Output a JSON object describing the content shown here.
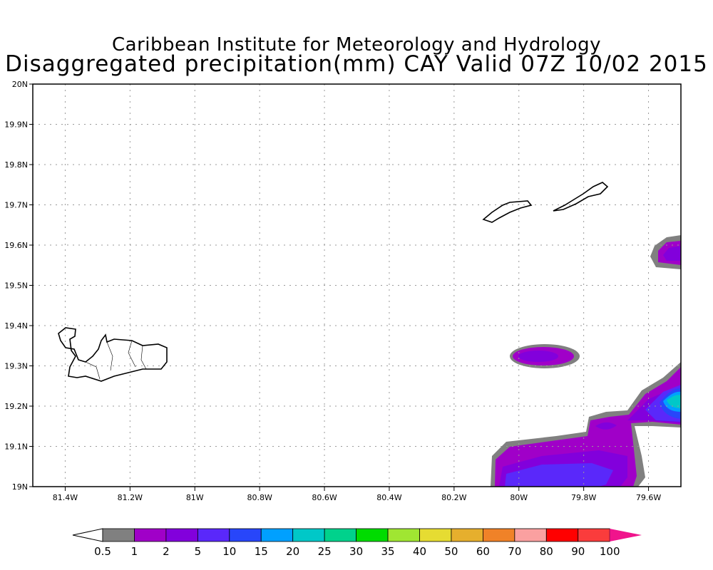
{
  "title": {
    "line1": "Caribbean Institute for Meteorology and Hydrology",
    "line2": "Disaggregated precipitation(mm) CAY Valid 07Z 10/02 2015"
  },
  "map": {
    "lon_range": [
      -81.5,
      -79.5
    ],
    "lat_range": [
      19.0,
      20.0
    ],
    "lon_ticks": [
      {
        "v": -81.4,
        "label": "81.4W"
      },
      {
        "v": -81.2,
        "label": "81.2W"
      },
      {
        "v": -81.0,
        "label": "81W"
      },
      {
        "v": -80.8,
        "label": "80.8W"
      },
      {
        "v": -80.6,
        "label": "80.6W"
      },
      {
        "v": -80.4,
        "label": "80.4W"
      },
      {
        "v": -80.2,
        "label": "80.2W"
      },
      {
        "v": -80.0,
        "label": "80W"
      },
      {
        "v": -79.8,
        "label": "79.8W"
      },
      {
        "v": -79.6,
        "label": "79.6W"
      }
    ],
    "lat_ticks": [
      {
        "v": 19.0,
        "label": "19N"
      },
      {
        "v": 19.1,
        "label": "19.1N"
      },
      {
        "v": 19.2,
        "label": "19.2N"
      },
      {
        "v": 19.3,
        "label": "19.3N"
      },
      {
        "v": 19.4,
        "label": "19.4N"
      },
      {
        "v": 19.5,
        "label": "19.5N"
      },
      {
        "v": 19.6,
        "label": "19.6N"
      },
      {
        "v": 19.7,
        "label": "19.7N"
      },
      {
        "v": 19.8,
        "label": "19.8N"
      },
      {
        "v": 19.9,
        "label": "19.9N"
      },
      {
        "v": 20.0,
        "label": "20N"
      }
    ]
  },
  "colorbar": {
    "labels": [
      "0.5",
      "1",
      "2",
      "5",
      "10",
      "15",
      "20",
      "25",
      "30",
      "35",
      "40",
      "50",
      "60",
      "70",
      "80",
      "90",
      "100"
    ],
    "colors": [
      "#808080",
      "#a000c8",
      "#8200dc",
      "#5a28fa",
      "#2846fa",
      "#00a0ff",
      "#00c8c8",
      "#00d28c",
      "#00dc00",
      "#a0e632",
      "#e6dc32",
      "#e6af2d",
      "#f08228",
      "#faa0a0",
      "#ff0000",
      "#fa3c3c"
    ],
    "under_color": "#ffffff",
    "over_color": "#f0148c"
  }
}
